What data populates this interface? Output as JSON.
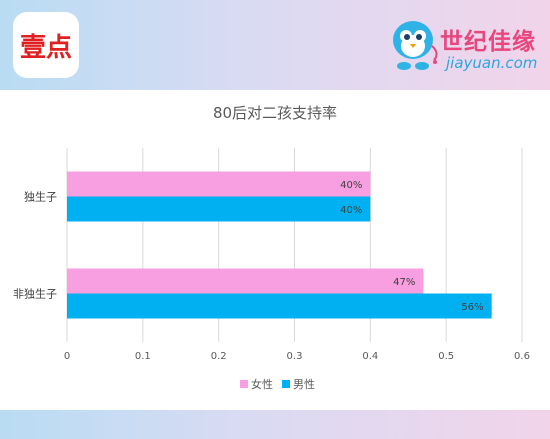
{
  "header": {
    "app_logo_text": "壹点",
    "brand_cn": "世纪佳缘",
    "brand_en": "jiayuan.com"
  },
  "chart_data": {
    "type": "bar",
    "orientation": "horizontal",
    "title": "80后对二孩支持率",
    "categories": [
      "独生子",
      "非独生子"
    ],
    "series": [
      {
        "name": "女性",
        "color": "#f79fe0",
        "values": [
          0.4,
          0.47
        ],
        "labels": [
          "40%",
          "47%"
        ]
      },
      {
        "name": "男性",
        "color": "#00b0f0",
        "values": [
          0.4,
          0.56
        ],
        "labels": [
          "40%",
          "56%"
        ]
      }
    ],
    "xlim": [
      0,
      0.6
    ],
    "xticks": [
      0,
      0.1,
      0.2,
      0.3,
      0.4,
      0.5,
      0.6
    ],
    "xtick_labels": [
      "0",
      "0.1",
      "0.2",
      "0.3",
      "0.4",
      "0.5",
      "0.6"
    ],
    "grid": true,
    "legend_position": "bottom"
  }
}
